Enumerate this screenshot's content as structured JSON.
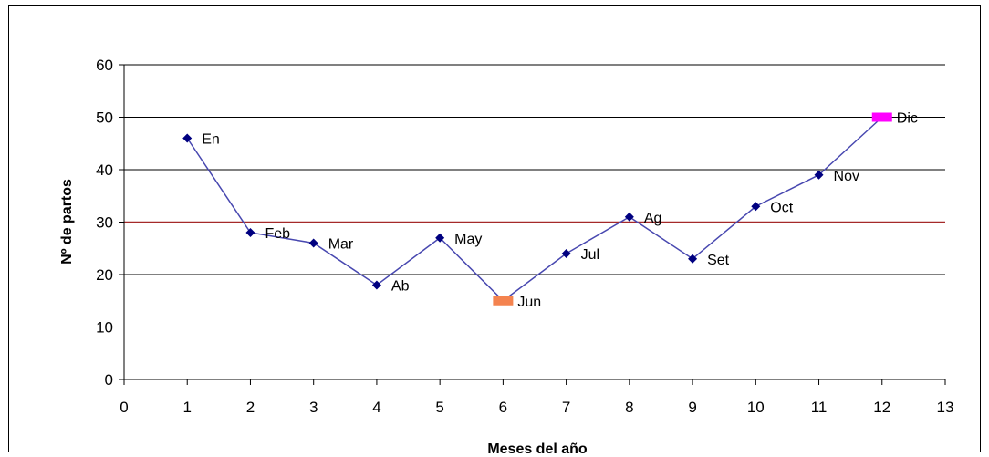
{
  "chart_data": {
    "type": "line",
    "title": "",
    "xlabel": "Meses del año",
    "ylabel": "Nº de partos",
    "xlim": [
      0,
      13
    ],
    "ylim": [
      0,
      60
    ],
    "xticks": [
      0,
      1,
      2,
      3,
      4,
      5,
      6,
      7,
      8,
      9,
      10,
      11,
      12,
      13
    ],
    "yticks": [
      0,
      10,
      20,
      30,
      40,
      50,
      60
    ],
    "grid": "horizontal",
    "legend": "none",
    "x": [
      1,
      2,
      3,
      4,
      5,
      6,
      7,
      8,
      9,
      10,
      11,
      12
    ],
    "y": [
      46,
      28,
      26,
      18,
      27,
      15,
      24,
      31,
      23,
      33,
      39,
      50
    ],
    "point_labels": [
      "En",
      "Feb",
      "Mar",
      "Ab",
      "May",
      "Jun",
      "Jul",
      "Ag",
      "Set",
      "Oct",
      "Nov",
      "Dic"
    ],
    "highlight": [
      {
        "label": "Jun",
        "marker": "bar",
        "color": "#f4834f"
      },
      {
        "label": "Dic",
        "marker": "bar",
        "color": "#ff00ff"
      }
    ],
    "reference_line": {
      "y": 30,
      "color": "#a52a2a"
    },
    "line_color": "#4848b0",
    "marker_color": "#000080"
  }
}
